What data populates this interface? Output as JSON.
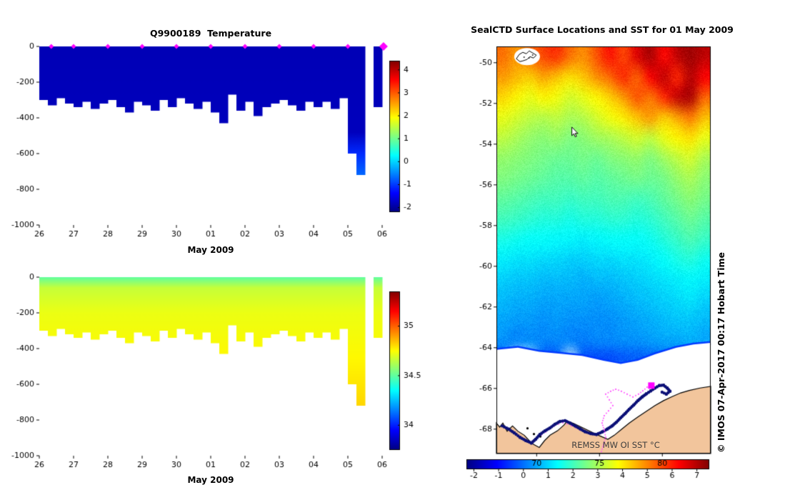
{
  "figure": {
    "background": "#ffffff"
  },
  "chart_data": [
    {
      "id": "temperature-section",
      "type": "heatmap",
      "title": "Q9900189  Temperature",
      "xlabel": "May 2009",
      "x_tick_labels": [
        "26",
        "27",
        "28",
        "29",
        "30",
        "01",
        "02",
        "03",
        "04",
        "05",
        "06"
      ],
      "y_ticks": [
        0,
        -200,
        -400,
        -600,
        -800,
        -1000
      ],
      "ylim": [
        0,
        -1000
      ],
      "value_units": "°C",
      "colormap": "jet",
      "vmin": -2.2,
      "vmax": 4.4,
      "colorbar_ticks": [
        4,
        3,
        2,
        1,
        0,
        -1,
        -2
      ],
      "profile_depths_m": [
        300,
        330,
        290,
        320,
        340,
        310,
        350,
        320,
        300,
        340,
        370,
        310,
        330,
        360,
        300,
        340,
        290,
        320,
        350,
        310,
        370,
        430,
        270,
        360,
        310,
        390,
        340,
        320,
        300,
        330,
        360,
        310,
        340,
        310,
        350,
        290,
        600,
        720,
        null,
        340
      ],
      "value_depth_stops": [
        [
          0,
          -1.85
        ],
        [
          480,
          -1.8
        ],
        [
          600,
          -1.1
        ],
        [
          720,
          -0.7
        ],
        [
          1000,
          -0.5
        ]
      ],
      "surface_marker_days": [
        0.35,
        1,
        2,
        3,
        4,
        5,
        6,
        7,
        8,
        9
      ],
      "last_marker_day": 10.04,
      "marker_color": "#ff00ff"
    },
    {
      "id": "salinity-section",
      "type": "heatmap",
      "title": "",
      "xlabel": "May 2009",
      "x_tick_labels": [
        "26",
        "27",
        "28",
        "29",
        "30",
        "01",
        "02",
        "03",
        "04",
        "05",
        "06"
      ],
      "y_ticks": [
        0,
        -200,
        -400,
        -600,
        -800,
        -1000
      ],
      "ylim": [
        0,
        -1000
      ],
      "value_units": "psu",
      "colormap": "jet",
      "vmin": 33.75,
      "vmax": 35.35,
      "colorbar_ticks": [
        35,
        34.5,
        34
      ],
      "profile_depths_m": [
        300,
        330,
        290,
        320,
        340,
        310,
        350,
        320,
        300,
        340,
        370,
        310,
        330,
        360,
        300,
        340,
        290,
        320,
        350,
        310,
        370,
        430,
        270,
        360,
        310,
        390,
        340,
        320,
        300,
        330,
        360,
        310,
        340,
        310,
        350,
        290,
        600,
        720,
        null,
        340
      ],
      "value_depth_stops": [
        [
          0,
          34.5
        ],
        [
          60,
          34.66
        ],
        [
          200,
          34.72
        ],
        [
          450,
          34.76
        ],
        [
          760,
          34.82
        ],
        [
          1000,
          34.85
        ]
      ]
    },
    {
      "id": "sst-map",
      "type": "heatmap",
      "title": "SealCTD Surface Locations and SST for 01 May 2009",
      "watermark": "REMSS MW OI SST °C",
      "credit": "© IMOS 07-Apr-2017 00:17 Hobart Time",
      "lat_ticks": [
        -50,
        -52,
        -54,
        -56,
        -58,
        -60,
        -62,
        -64,
        -66,
        -68
      ],
      "lon_ticks": [
        70,
        75,
        80
      ],
      "lat_range": [
        -49.2,
        -69.2
      ],
      "lon_range": [
        66.8,
        83.85
      ],
      "colormap": "jet",
      "vmin": -2.3,
      "vmax": 7.5,
      "colorbar_ticks": [
        -2,
        -1,
        0,
        1,
        2,
        3,
        4,
        5,
        6,
        7
      ],
      "sst_grid": [
        [
          5.2,
          4.8,
          5.2,
          5.6,
          5.8,
          5.2,
          4.9,
          5.5,
          6.1,
          5.6,
          6.6,
          7.1,
          6.2,
          6.9,
          7.2,
          6.9
        ],
        [
          4.8,
          4.5,
          4.3,
          4.7,
          4.4,
          4.1,
          4.4,
          4.9,
          5.3,
          5.9,
          5.3,
          6.3,
          6.9,
          5.9,
          7.0,
          6.3
        ],
        [
          4.2,
          3.9,
          3.6,
          3.9,
          3.7,
          3.4,
          3.6,
          3.9,
          4.3,
          4.8,
          5.5,
          5.1,
          5.9,
          6.9,
          7.1,
          5.3
        ],
        [
          3.6,
          3.4,
          3.2,
          3.1,
          3.2,
          3.0,
          3.1,
          3.4,
          3.7,
          4.0,
          4.4,
          4.8,
          4.3,
          4.7,
          5.1,
          4.4
        ],
        [
          3.2,
          3.0,
          2.8,
          2.7,
          2.8,
          2.6,
          2.7,
          2.9,
          3.0,
          3.2,
          3.4,
          3.2,
          3.6,
          3.9,
          4.1,
          3.6
        ],
        [
          2.8,
          2.7,
          2.6,
          2.5,
          2.4,
          2.4,
          2.5,
          2.4,
          2.6,
          2.7,
          2.8,
          2.6,
          2.9,
          3.2,
          3.4,
          3.0
        ],
        [
          2.6,
          2.5,
          2.4,
          2.3,
          2.2,
          2.2,
          2.3,
          2.2,
          2.3,
          2.4,
          2.5,
          2.4,
          2.5,
          2.8,
          3.0,
          2.7
        ],
        [
          2.3,
          2.2,
          2.1,
          2.0,
          2.0,
          1.9,
          2.0,
          2.0,
          2.1,
          2.1,
          2.0,
          2.1,
          2.3,
          2.5,
          2.7,
          2.5
        ],
        [
          2.0,
          1.9,
          1.8,
          1.7,
          1.7,
          1.6,
          1.7,
          1.7,
          1.8,
          1.8,
          1.7,
          1.8,
          2.0,
          2.2,
          2.4,
          2.2
        ],
        [
          1.6,
          1.5,
          1.4,
          1.4,
          1.3,
          1.3,
          1.2,
          1.3,
          1.4,
          1.4,
          1.4,
          1.5,
          1.7,
          1.9,
          2.1,
          1.9
        ],
        [
          1.2,
          1.1,
          1.1,
          1.0,
          1.0,
          0.9,
          0.9,
          1.0,
          1.0,
          1.1,
          1.1,
          1.2,
          1.4,
          1.6,
          1.7,
          1.5
        ],
        [
          0.9,
          0.8,
          0.8,
          0.7,
          0.7,
          0.7,
          0.6,
          0.7,
          0.7,
          0.8,
          0.9,
          1.0,
          1.1,
          1.2,
          1.3,
          1.2
        ],
        [
          0.7,
          0.6,
          0.6,
          0.5,
          0.5,
          0.5,
          0.5,
          0.4,
          0.5,
          0.6,
          0.7,
          0.8,
          0.9,
          1.0,
          1.1,
          0.9
        ],
        [
          0.5,
          0.4,
          0.4,
          0.3,
          0.4,
          0.3,
          0.3,
          0.3,
          0.3,
          0.4,
          0.5,
          0.6,
          0.7,
          0.8,
          0.8,
          0.7
        ],
        [
          0.3,
          0.2,
          0.3,
          0.2,
          0.2,
          0.2,
          0.1,
          0.2,
          0.2,
          0.3,
          0.3,
          0.4,
          0.5,
          0.5,
          0.6,
          0.5
        ],
        [
          -0.2,
          null,
          null,
          -0.3,
          -0.3,
          null,
          -0.3,
          -0.4,
          -0.4,
          -0.3,
          -0.2,
          -0.2,
          -0.1,
          0.0,
          0.1,
          null
        ],
        [
          null,
          null,
          null,
          null,
          null,
          null,
          null,
          null,
          null,
          null,
          null,
          null,
          null,
          null,
          null,
          null
        ],
        [
          null,
          null,
          null,
          null,
          null,
          null,
          null,
          null,
          null,
          null,
          null,
          null,
          null,
          null,
          null,
          null
        ],
        [
          null,
          null,
          null,
          null,
          null,
          null,
          null,
          null,
          null,
          null,
          null,
          null,
          null,
          null,
          null,
          null
        ],
        [
          null,
          null,
          null,
          null,
          null,
          null,
          null,
          null,
          null,
          null,
          null,
          null,
          null,
          null,
          null,
          null
        ]
      ],
      "ice_edge": [
        [
          0,
          0.745
        ],
        [
          0.1,
          0.74
        ],
        [
          0.2,
          0.75
        ],
        [
          0.3,
          0.755
        ],
        [
          0.4,
          0.76
        ],
        [
          0.5,
          0.772
        ],
        [
          0.58,
          0.78
        ],
        [
          0.66,
          0.772
        ],
        [
          0.74,
          0.756
        ],
        [
          0.84,
          0.74
        ],
        [
          0.92,
          0.732
        ],
        [
          1,
          0.728
        ]
      ],
      "land_polygon": [
        [
          0,
          0.925
        ],
        [
          0.015,
          0.935
        ],
        [
          0.03,
          0.925
        ],
        [
          0.05,
          0.945
        ],
        [
          0.075,
          0.932
        ],
        [
          0.1,
          0.945
        ],
        [
          0.13,
          0.955
        ],
        [
          0.165,
          0.975
        ],
        [
          0.2,
          0.985
        ],
        [
          0.225,
          0.968
        ],
        [
          0.25,
          0.955
        ],
        [
          0.285,
          0.944
        ],
        [
          0.315,
          0.93
        ],
        [
          0.33,
          0.92
        ],
        [
          0.36,
          0.926
        ],
        [
          0.4,
          0.936
        ],
        [
          0.44,
          0.946
        ],
        [
          0.48,
          0.956
        ],
        [
          0.52,
          0.965
        ],
        [
          0.55,
          0.955
        ],
        [
          0.585,
          0.94
        ],
        [
          0.62,
          0.925
        ],
        [
          0.66,
          0.91
        ],
        [
          0.7,
          0.896
        ],
        [
          0.74,
          0.882
        ],
        [
          0.78,
          0.87
        ],
        [
          0.82,
          0.86
        ],
        [
          0.86,
          0.851
        ],
        [
          0.9,
          0.845
        ],
        [
          0.95,
          0.839
        ],
        [
          1,
          0.835
        ],
        [
          1,
          1
        ],
        [
          0,
          1
        ]
      ],
      "land_color": "#f2c59c",
      "islets": [
        [
          0.145,
          0.938
        ],
        [
          0.175,
          0.952
        ],
        [
          0.205,
          0.958
        ],
        [
          0.23,
          0.944
        ]
      ],
      "seal_track": [
        [
          0.027,
          0.932
        ],
        [
          0.057,
          0.94
        ],
        [
          0.083,
          0.949
        ],
        [
          0.11,
          0.96
        ],
        [
          0.137,
          0.968
        ],
        [
          0.163,
          0.974
        ],
        [
          0.183,
          0.965
        ],
        [
          0.203,
          0.953
        ],
        [
          0.227,
          0.944
        ],
        [
          0.25,
          0.937
        ],
        [
          0.273,
          0.928
        ],
        [
          0.297,
          0.921
        ],
        [
          0.32,
          0.919
        ],
        [
          0.343,
          0.925
        ],
        [
          0.367,
          0.932
        ],
        [
          0.39,
          0.939
        ],
        [
          0.413,
          0.946
        ],
        [
          0.44,
          0.951
        ],
        [
          0.467,
          0.953
        ],
        [
          0.493,
          0.947
        ],
        [
          0.517,
          0.94
        ],
        [
          0.54,
          0.932
        ],
        [
          0.56,
          0.923
        ],
        [
          0.58,
          0.912
        ],
        [
          0.6,
          0.902
        ],
        [
          0.62,
          0.891
        ],
        [
          0.64,
          0.881
        ],
        [
          0.66,
          0.87
        ],
        [
          0.68,
          0.861
        ],
        [
          0.7,
          0.853
        ],
        [
          0.72,
          0.846
        ],
        [
          0.74,
          0.839
        ],
        [
          0.76,
          0.833
        ],
        [
          0.78,
          0.832
        ],
        [
          0.797,
          0.839
        ],
        [
          0.81,
          0.847
        ],
        [
          0.793,
          0.854
        ],
        [
          0.773,
          0.849
        ]
      ],
      "track_color": "#0c1077",
      "argos_trail": [
        [
          0.49,
          0.995
        ],
        [
          0.5,
          0.977
        ],
        [
          0.51,
          0.96
        ],
        [
          0.503,
          0.942
        ],
        [
          0.493,
          0.925
        ],
        [
          0.503,
          0.907
        ],
        [
          0.523,
          0.895
        ],
        [
          0.543,
          0.882
        ],
        [
          0.527,
          0.868
        ],
        [
          0.51,
          0.854
        ],
        [
          0.533,
          0.847
        ],
        [
          0.557,
          0.842
        ],
        [
          0.583,
          0.847
        ],
        [
          0.61,
          0.854
        ],
        [
          0.637,
          0.861
        ],
        [
          0.663,
          0.854
        ],
        [
          0.683,
          0.846
        ],
        [
          0.703,
          0.837
        ],
        [
          0.723,
          0.833
        ]
      ],
      "argos_trail2": [
        [
          0.19,
          0.962
        ],
        [
          0.23,
          0.947
        ],
        [
          0.27,
          0.932
        ],
        [
          0.31,
          0.924
        ],
        [
          0.35,
          0.932
        ],
        [
          0.39,
          0.942
        ],
        [
          0.43,
          0.949
        ]
      ],
      "trail_color": "#ff5aff",
      "current_position": [
        0.723,
        0.833
      ],
      "position_color": "#ff00ff",
      "island": [
        0.143,
        0.025
      ],
      "cursor": [
        0.352,
        0.198
      ]
    }
  ]
}
